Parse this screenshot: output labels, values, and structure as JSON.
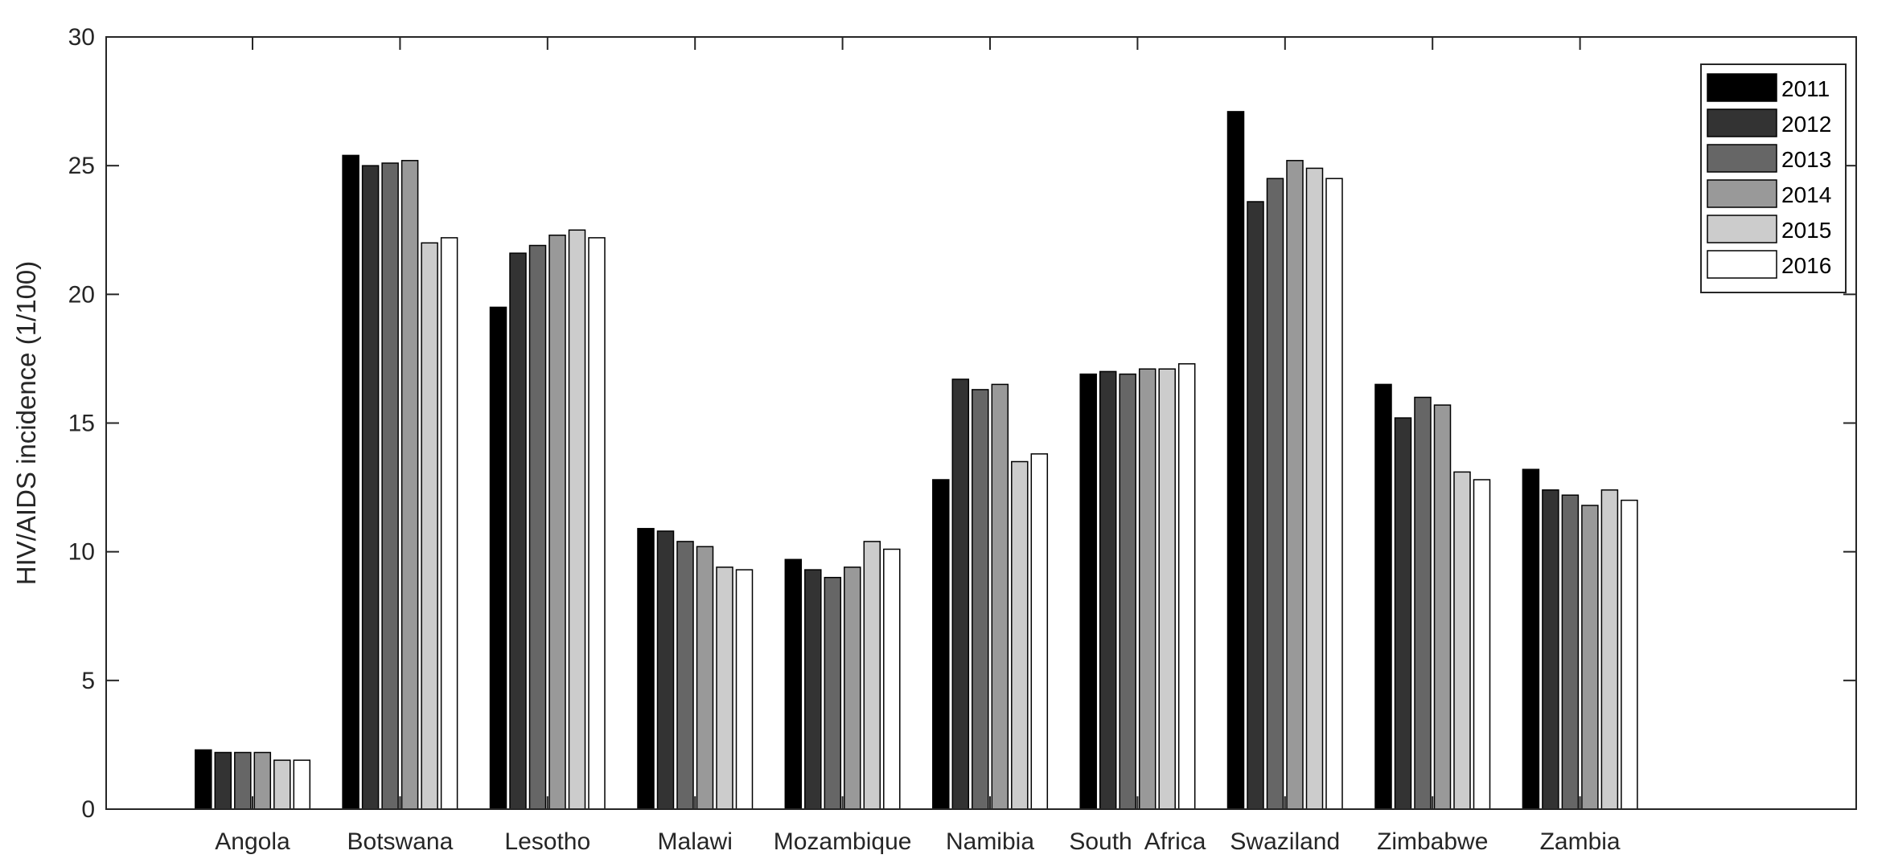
{
  "chart_data": {
    "type": "bar",
    "title": "",
    "xlabel": "",
    "ylabel": "HIV/AIDS incidence (1/100)",
    "ylim": [
      0,
      30
    ],
    "yticks": [
      0,
      5,
      10,
      15,
      20,
      25,
      30
    ],
    "grid": false,
    "legend_position": "top-right",
    "categories": [
      "Angola",
      "Botswana",
      "Lesotho",
      "Malawi",
      "Mozambique",
      "Namibia",
      "South  Africa",
      "Swaziland",
      "Zimbabwe",
      "Zambia"
    ],
    "series": [
      {
        "name": "2011",
        "color": "#000000",
        "values": [
          2.3,
          25.4,
          19.5,
          10.9,
          9.7,
          12.8,
          16.9,
          27.1,
          16.5,
          13.2
        ]
      },
      {
        "name": "2012",
        "color": "#333333",
        "values": [
          2.2,
          25.0,
          21.6,
          10.8,
          9.3,
          16.7,
          17.0,
          23.6,
          15.2,
          12.4
        ]
      },
      {
        "name": "2013",
        "color": "#666666",
        "values": [
          2.2,
          25.1,
          21.9,
          10.4,
          9.0,
          16.3,
          16.9,
          24.5,
          16.0,
          12.2
        ]
      },
      {
        "name": "2014",
        "color": "#999999",
        "values": [
          2.2,
          25.2,
          22.3,
          10.2,
          9.4,
          16.5,
          17.1,
          25.2,
          15.7,
          11.8
        ]
      },
      {
        "name": "2015",
        "color": "#cccccc",
        "values": [
          1.9,
          22.0,
          22.5,
          9.4,
          10.4,
          13.5,
          17.1,
          24.9,
          13.1,
          12.4
        ]
      },
      {
        "name": "2016",
        "color": "#ffffff",
        "values": [
          1.9,
          22.2,
          22.2,
          9.3,
          10.1,
          13.8,
          17.3,
          24.5,
          12.8,
          12.0
        ]
      }
    ]
  }
}
